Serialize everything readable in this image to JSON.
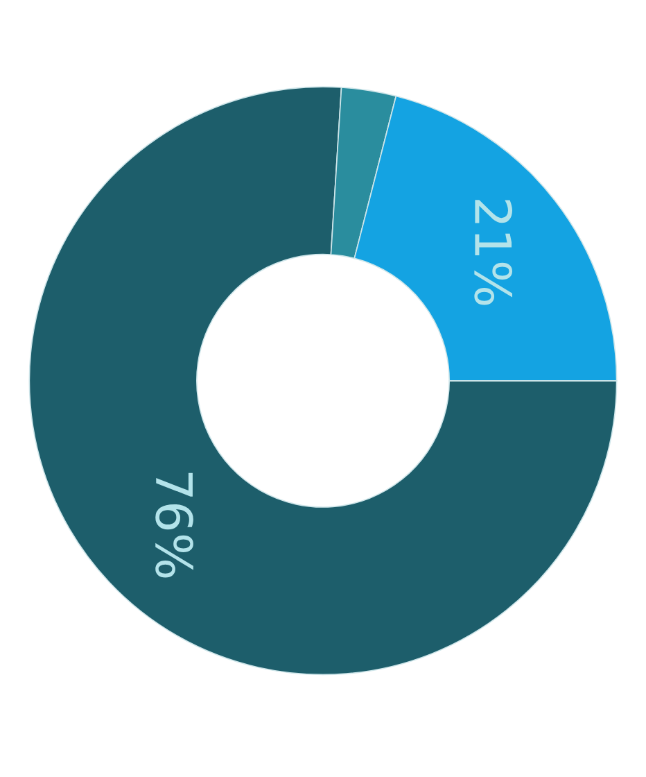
{
  "chart_data": {
    "type": "donut",
    "categories": [
      null,
      null,
      null
    ],
    "values": [
      76,
      3,
      21
    ],
    "colors": [
      "#1d5e6b",
      "#2a8d9e",
      "#14a3e2"
    ],
    "value_labels": [
      "76%",
      null,
      "21%"
    ]
  }
}
